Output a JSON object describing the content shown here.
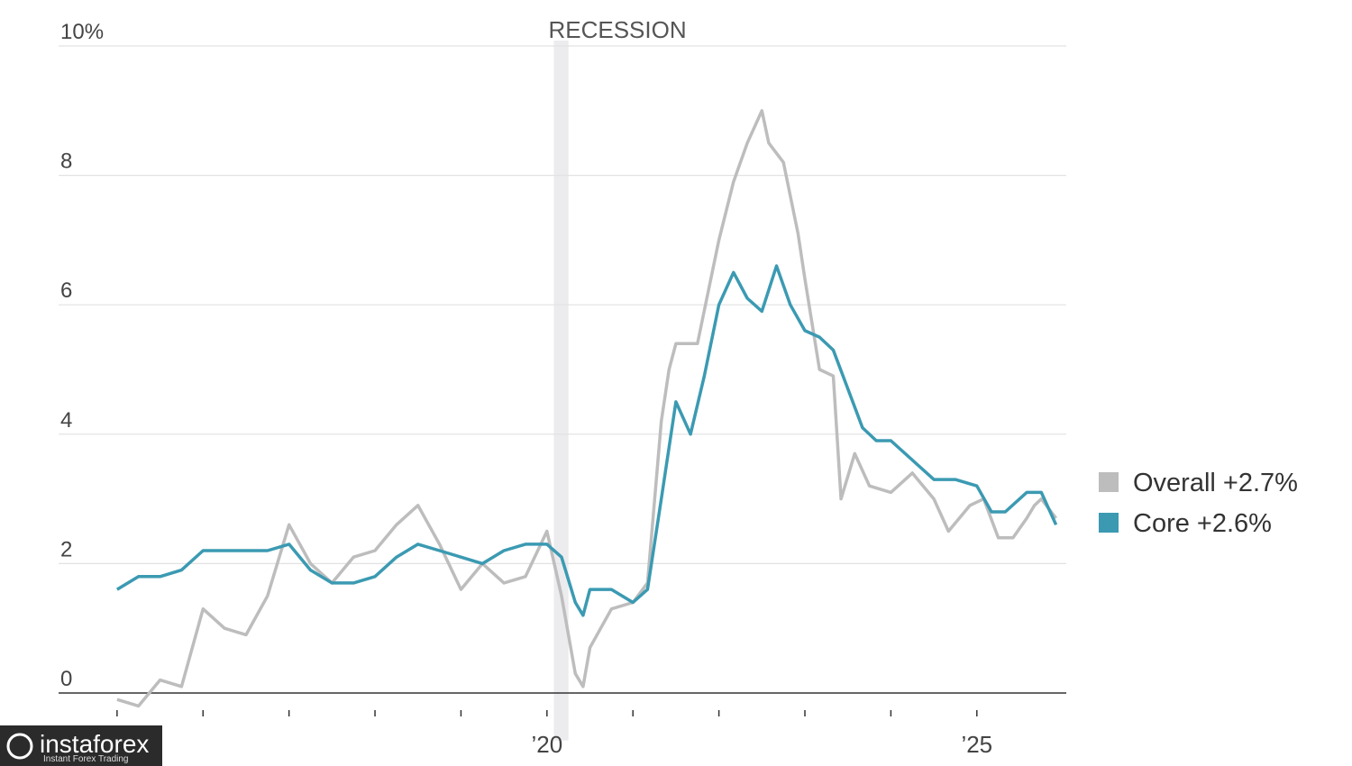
{
  "chart_data": {
    "type": "line",
    "annotations": [
      {
        "label": "RECESSION",
        "xlim": [
          2020.08,
          2020.25
        ]
      }
    ],
    "xlim": [
      2014.32,
      2026.04
    ],
    "ylim": [
      -0.4,
      10
    ],
    "xticks": [
      {
        "value": 2015,
        "label": null
      },
      {
        "value": 2016,
        "label": null
      },
      {
        "value": 2017,
        "label": null
      },
      {
        "value": 2018,
        "label": null
      },
      {
        "value": 2019,
        "label": null
      },
      {
        "value": 2020,
        "label": "’20"
      },
      {
        "value": 2021,
        "label": null
      },
      {
        "value": 2022,
        "label": null
      },
      {
        "value": 2023,
        "label": null
      },
      {
        "value": 2024,
        "label": null
      },
      {
        "value": 2025,
        "label": "’25"
      }
    ],
    "yticks": [
      0,
      2,
      4,
      6,
      8,
      {
        "value": 10,
        "label": "10%"
      }
    ],
    "grid": true,
    "series": [
      {
        "name": "Overall +2.7%",
        "color": "#bdbdbd",
        "x": [
          2015.0,
          2015.25,
          2015.5,
          2015.75,
          2016.0,
          2016.25,
          2016.5,
          2016.75,
          2017.0,
          2017.25,
          2017.5,
          2017.75,
          2018.0,
          2018.25,
          2018.5,
          2018.75,
          2019.0,
          2019.25,
          2019.5,
          2019.75,
          2020.0,
          2020.17,
          2020.33,
          2020.42,
          2020.5,
          2020.75,
          2021.0,
          2021.17,
          2021.33,
          2021.42,
          2021.5,
          2021.75,
          2022.0,
          2022.17,
          2022.33,
          2022.5,
          2022.58,
          2022.75,
          2022.92,
          2023.0,
          2023.17,
          2023.33,
          2023.42,
          2023.58,
          2023.75,
          2024.0,
          2024.25,
          2024.5,
          2024.67,
          2024.92,
          2025.08,
          2025.25,
          2025.42,
          2025.58,
          2025.67,
          2025.75,
          2025.92
        ],
        "values": [
          -0.1,
          -0.2,
          0.2,
          0.1,
          1.3,
          1.0,
          0.9,
          1.5,
          2.6,
          2.0,
          1.7,
          2.1,
          2.2,
          2.6,
          2.9,
          2.3,
          1.6,
          2.0,
          1.7,
          1.8,
          2.5,
          1.5,
          0.3,
          0.1,
          0.7,
          1.3,
          1.4,
          1.7,
          4.2,
          5.0,
          5.4,
          5.4,
          7.0,
          7.9,
          8.5,
          9.0,
          8.5,
          8.2,
          7.1,
          6.4,
          5.0,
          4.9,
          3.0,
          3.7,
          3.2,
          3.1,
          3.4,
          3.0,
          2.5,
          2.9,
          3.0,
          2.4,
          2.4,
          2.7,
          2.9,
          3.0,
          2.7
        ]
      },
      {
        "name": "Core +2.6%",
        "color": "#3b9ab2",
        "x": [
          2015.0,
          2015.25,
          2015.5,
          2015.75,
          2016.0,
          2016.25,
          2016.5,
          2016.75,
          2017.0,
          2017.25,
          2017.5,
          2017.75,
          2018.0,
          2018.25,
          2018.5,
          2018.75,
          2019.0,
          2019.25,
          2019.5,
          2019.75,
          2020.0,
          2020.17,
          2020.33,
          2020.42,
          2020.5,
          2020.75,
          2021.0,
          2021.17,
          2021.33,
          2021.5,
          2021.67,
          2021.83,
          2022.0,
          2022.17,
          2022.33,
          2022.5,
          2022.67,
          2022.83,
          2023.0,
          2023.17,
          2023.33,
          2023.5,
          2023.67,
          2023.83,
          2024.0,
          2024.25,
          2024.5,
          2024.75,
          2025.0,
          2025.17,
          2025.33,
          2025.58,
          2025.75,
          2025.92
        ],
        "values": [
          1.6,
          1.8,
          1.8,
          1.9,
          2.2,
          2.2,
          2.2,
          2.2,
          2.3,
          1.9,
          1.7,
          1.7,
          1.8,
          2.1,
          2.3,
          2.2,
          2.1,
          2.0,
          2.2,
          2.3,
          2.3,
          2.1,
          1.4,
          1.2,
          1.6,
          1.6,
          1.4,
          1.6,
          3.0,
          4.5,
          4.0,
          4.9,
          6.0,
          6.5,
          6.1,
          5.9,
          6.6,
          6.0,
          5.6,
          5.5,
          5.3,
          4.7,
          4.1,
          3.9,
          3.9,
          3.6,
          3.3,
          3.3,
          3.2,
          2.8,
          2.8,
          3.1,
          3.1,
          2.6
        ]
      }
    ]
  },
  "watermark": {
    "name": "instaforex",
    "tagline": "Instant Forex Trading"
  }
}
